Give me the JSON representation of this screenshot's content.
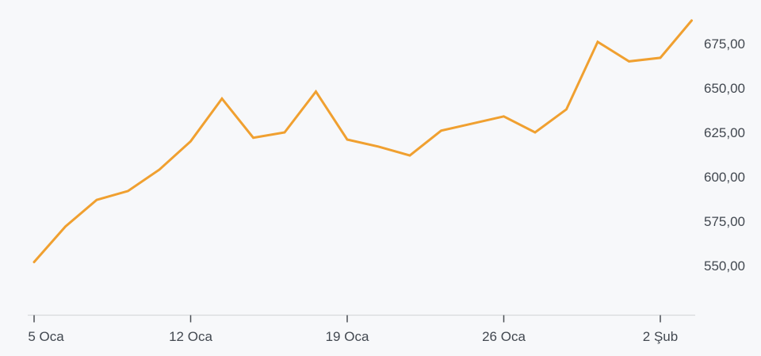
{
  "page": {
    "background": "#F7F8FA"
  },
  "chart_data": {
    "type": "line",
    "title": "",
    "xlabel": "",
    "ylabel": "",
    "grid": false,
    "legend": "none",
    "y_axis_side": "right",
    "number_format": "tr-comma-decimal",
    "categories": [
      "5 Oca",
      "6 Oca",
      "7 Oca",
      "8 Oca",
      "9 Oca",
      "12 Oca",
      "13 Oca",
      "14 Oca",
      "15 Oca",
      "16 Oca",
      "19 Oca",
      "20 Oca",
      "21 Oca",
      "22 Oca",
      "23 Oca",
      "26 Oca",
      "27 Oca",
      "28 Oca",
      "29 Oca",
      "30 Oca",
      "2 Şub",
      "3 Şub"
    ],
    "series": [
      {
        "color": "#F0A030",
        "values": [
          552,
          572,
          587,
          592,
          604,
          620,
          644,
          622,
          625,
          648,
          621,
          617,
          612,
          626,
          630,
          634,
          625,
          638,
          676,
          665,
          667,
          688
        ]
      }
    ],
    "x_ticks": [
      {
        "index": 0,
        "label": "5 Oca"
      },
      {
        "index": 5,
        "label": "12 Oca"
      },
      {
        "index": 10,
        "label": "19 Oca"
      },
      {
        "index": 15,
        "label": "26 Oca"
      },
      {
        "index": 20,
        "label": "2 Şub"
      }
    ],
    "y_ticks": [
      {
        "value": 675,
        "label": "675,00"
      },
      {
        "value": 650,
        "label": "650,00"
      },
      {
        "value": 625,
        "label": "625,00"
      },
      {
        "value": 600,
        "label": "600,00"
      },
      {
        "value": 575,
        "label": "575,00"
      },
      {
        "value": 550,
        "label": "550,00"
      }
    ],
    "ylim": [
      550,
      675
    ]
  },
  "colors": {
    "line": "#F0A030",
    "axis_line": "#D8DADC",
    "tick_mark": "#4A4F55",
    "axis_text": "#424850",
    "background": "#F7F8FA"
  }
}
